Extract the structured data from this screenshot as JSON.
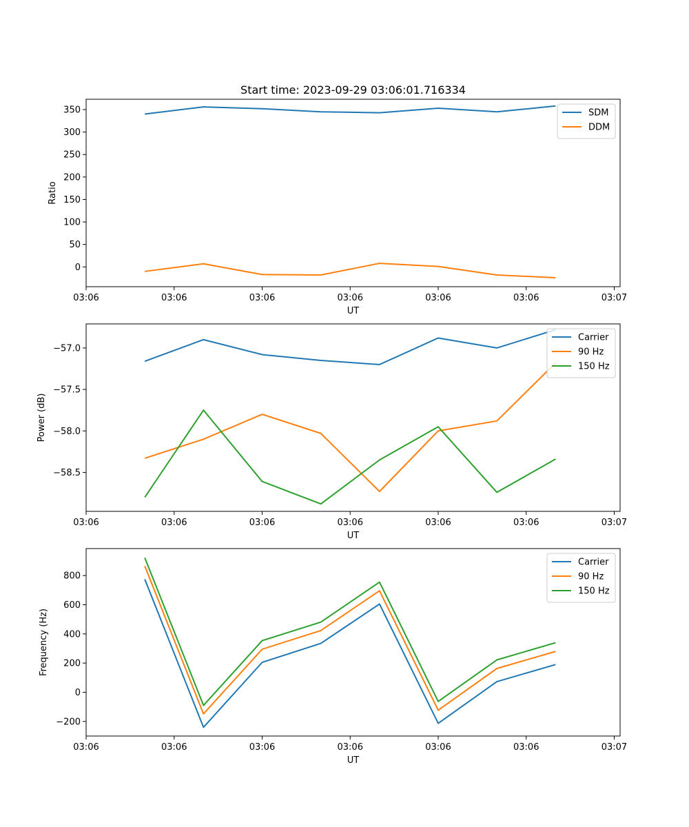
{
  "figure_title": "Start time: 2023-09-29 03:06:01.716334",
  "colors": {
    "blue": "#1f77b4",
    "orange": "#ff7f0e",
    "green": "#2ca02c"
  },
  "chart_data": [
    {
      "type": "line",
      "name": "ratio-chart",
      "title": "Start time: 2023-09-29 03:06:01.716334",
      "xlabel": "UT",
      "ylabel": "Ratio",
      "x": [
        1,
        2,
        3,
        4,
        5,
        6,
        7,
        8
      ],
      "xlim": [
        0,
        9.1
      ],
      "xticks": [
        {
          "value": 0,
          "label": "03:06"
        },
        {
          "value": 1.5,
          "label": "03:06"
        },
        {
          "value": 3,
          "label": "03:06"
        },
        {
          "value": 4.5,
          "label": "03:06"
        },
        {
          "value": 6,
          "label": "03:06"
        },
        {
          "value": 7.5,
          "label": "03:06"
        },
        {
          "value": 9,
          "label": "03:07"
        }
      ],
      "ylim": [
        -44,
        373
      ],
      "yticks": [
        {
          "value": 350,
          "label": "350"
        },
        {
          "value": 300,
          "label": "300"
        },
        {
          "value": 250,
          "label": "250"
        },
        {
          "value": 200,
          "label": "200"
        },
        {
          "value": 150,
          "label": "150"
        },
        {
          "value": 100,
          "label": "100"
        },
        {
          "value": 50,
          "label": "50"
        },
        {
          "value": 0,
          "label": "0"
        }
      ],
      "legend": "top-right",
      "series": [
        {
          "name": "SDM",
          "color": "#1f77b4",
          "values": [
            340,
            356,
            352,
            345,
            343,
            353,
            345,
            358
          ]
        },
        {
          "name": "DDM",
          "color": "#ff7f0e",
          "values": [
            -10,
            7,
            -17,
            -18,
            8,
            1,
            -18,
            -24
          ]
        }
      ]
    },
    {
      "type": "line",
      "name": "power-chart",
      "title": "",
      "xlabel": "UT",
      "ylabel": "Power (dB)",
      "x": [
        1,
        2,
        3,
        4,
        5,
        6,
        7,
        8
      ],
      "xlim": [
        0,
        9.1
      ],
      "xticks": [
        {
          "value": 0,
          "label": "03:06"
        },
        {
          "value": 1.5,
          "label": "03:06"
        },
        {
          "value": 3,
          "label": "03:06"
        },
        {
          "value": 4.5,
          "label": "03:06"
        },
        {
          "value": 6,
          "label": "03:06"
        },
        {
          "value": 7.5,
          "label": "03:06"
        },
        {
          "value": 9,
          "label": "03:07"
        }
      ],
      "ylim": [
        -58.97,
        -56.71
      ],
      "yticks": [
        {
          "value": -57.0,
          "label": "−57.0"
        },
        {
          "value": -57.5,
          "label": "−57.5"
        },
        {
          "value": -58.0,
          "label": "−58.0"
        },
        {
          "value": -58.5,
          "label": "−58.5"
        }
      ],
      "legend": "top-right",
      "series": [
        {
          "name": "Carrier",
          "color": "#1f77b4",
          "values": [
            -57.16,
            -56.9,
            -57.08,
            -57.15,
            -57.2,
            -56.88,
            -57.0,
            -56.78
          ]
        },
        {
          "name": "90 Hz",
          "color": "#ff7f0e",
          "values": [
            -58.33,
            -58.1,
            -57.8,
            -58.03,
            -58.73,
            -58.0,
            -57.88,
            -57.18
          ]
        },
        {
          "name": "150 Hz",
          "color": "#2ca02c",
          "values": [
            -58.8,
            -57.75,
            -58.61,
            -58.88,
            -58.35,
            -57.95,
            -58.74,
            -58.34
          ]
        }
      ]
    },
    {
      "type": "line",
      "name": "frequency-chart",
      "title": "",
      "xlabel": "UT",
      "ylabel": "Frequency (Hz)",
      "x": [
        1,
        2,
        3,
        4,
        5,
        6,
        7,
        8
      ],
      "xlim": [
        0,
        9.1
      ],
      "xticks": [
        {
          "value": 0,
          "label": "03:06"
        },
        {
          "value": 1.5,
          "label": "03:06"
        },
        {
          "value": 3,
          "label": "03:06"
        },
        {
          "value": 4.5,
          "label": "03:06"
        },
        {
          "value": 6,
          "label": "03:06"
        },
        {
          "value": 7.5,
          "label": "03:06"
        },
        {
          "value": 9,
          "label": "03:07"
        }
      ],
      "ylim": [
        -300,
        985
      ],
      "yticks": [
        {
          "value": 800,
          "label": "800"
        },
        {
          "value": 600,
          "label": "600"
        },
        {
          "value": 400,
          "label": "400"
        },
        {
          "value": 200,
          "label": "200"
        },
        {
          "value": 0,
          "label": "0"
        },
        {
          "value": -200,
          "label": "−200"
        }
      ],
      "legend": "top-right",
      "series": [
        {
          "name": "Carrier",
          "color": "#1f77b4",
          "values": [
            775,
            -240,
            205,
            335,
            605,
            -213,
            73,
            190
          ]
        },
        {
          "name": "90 Hz",
          "color": "#ff7f0e",
          "values": [
            865,
            -148,
            295,
            423,
            696,
            -123,
            163,
            280
          ]
        },
        {
          "name": "150 Hz",
          "color": "#2ca02c",
          "values": [
            922,
            -90,
            354,
            481,
            755,
            -63,
            222,
            340
          ]
        }
      ]
    }
  ]
}
